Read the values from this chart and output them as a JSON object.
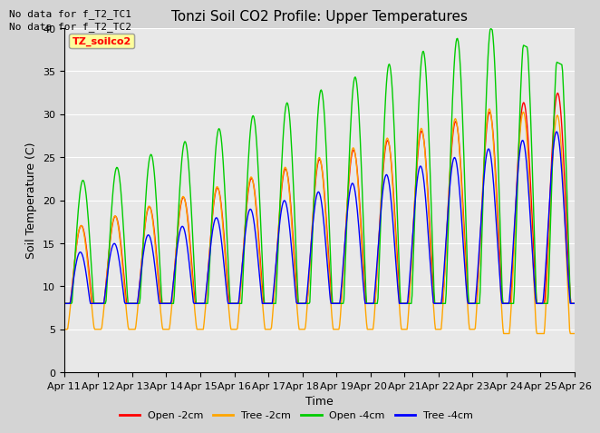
{
  "title": "Tonzi Soil CO2 Profile: Upper Temperatures",
  "xlabel": "Time",
  "ylabel": "Soil Temperature (C)",
  "ylim": [
    0,
    40
  ],
  "yticks": [
    0,
    5,
    10,
    15,
    20,
    25,
    30,
    35,
    40
  ],
  "no_data_text": [
    "No data for f_T2_TC1",
    "No data for f_T2_TC2"
  ],
  "legend_label": "TZ_soilco2",
  "line_colors": [
    "#ff0000",
    "#ffa500",
    "#00cc00",
    "#0000ff"
  ],
  "line_labels": [
    "Open -2cm",
    "Tree -2cm",
    "Open -4cm",
    "Tree -4cm"
  ],
  "line_width": 1.0,
  "bg_color": "#d4d4d4",
  "plot_bg": "#e8e8e8",
  "grid_color": "#ffffff",
  "title_fontsize": 11,
  "label_fontsize": 9,
  "tick_fontsize": 8,
  "n_points": 720,
  "t_start": 0,
  "t_end": 15,
  "x_tick_labels": [
    "Apr 11",
    "Apr 12",
    "Apr 13",
    "Apr 14",
    "Apr 15",
    "Apr 16",
    "Apr 17",
    "Apr 18",
    "Apr 19",
    "Apr 20",
    "Apr 21",
    "Apr 22",
    "Apr 23",
    "Apr 24",
    "Apr 25",
    "Apr 26"
  ],
  "x_tick_positions": [
    0,
    1,
    2,
    3,
    4,
    5,
    6,
    7,
    8,
    9,
    10,
    11,
    12,
    13,
    14,
    15
  ]
}
